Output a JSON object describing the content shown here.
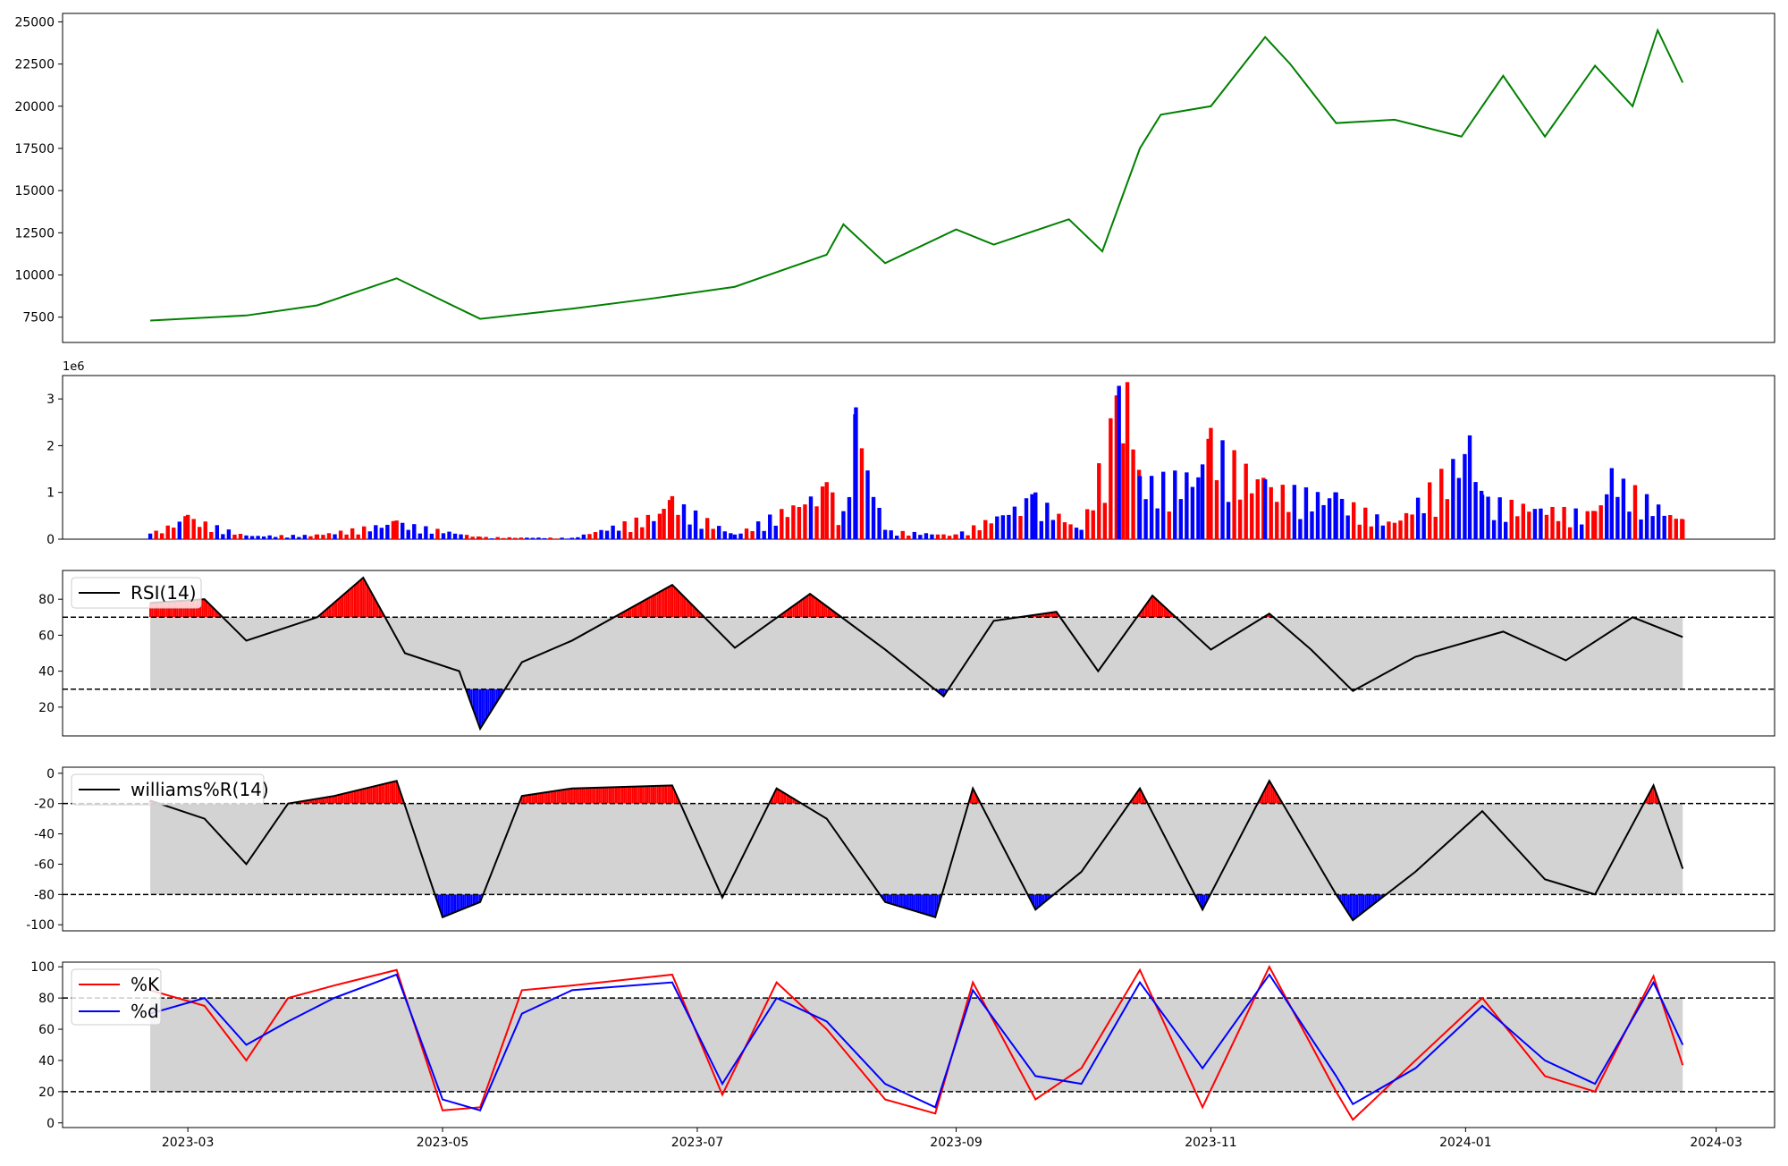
{
  "chart_data": [
    {
      "panel": "price",
      "type": "line",
      "color": "#008000",
      "ylim": [
        6000,
        25500
      ],
      "yticks": [
        7500,
        10000,
        12500,
        15000,
        17500,
        20000,
        22500,
        25000
      ],
      "x": [
        "2023-02-20",
        "2023-03-15",
        "2023-04-01",
        "2023-04-20",
        "2023-05-10",
        "2023-06-01",
        "2023-06-20",
        "2023-07-10",
        "2023-08-01",
        "2023-08-05",
        "2023-08-15",
        "2023-09-01",
        "2023-09-10",
        "2023-09-28",
        "2023-10-06",
        "2023-10-15",
        "2023-10-20",
        "2023-11-01",
        "2023-11-14",
        "2023-11-20",
        "2023-12-01",
        "2023-12-15",
        "2023-12-31",
        "2024-01-10",
        "2024-01-20",
        "2024-02-01",
        "2024-02-10",
        "2024-02-16",
        "2024-02-22"
      ],
      "values": [
        7300,
        7600,
        8200,
        9800,
        7400,
        8000,
        8600,
        9300,
        11200,
        13000,
        10700,
        12700,
        11800,
        13300,
        11400,
        17500,
        19500,
        20000,
        24100,
        22500,
        19000,
        19200,
        18200,
        21800,
        18200,
        22400,
        20000,
        24500,
        21400
      ]
    },
    {
      "panel": "volume",
      "type": "bar",
      "up_color": "#ff0000",
      "down_color": "#0000ff",
      "scale_label": "1e6",
      "ylim": [
        0,
        3.5
      ],
      "yticks": [
        0,
        1,
        2,
        3
      ],
      "x": [
        "2023-02-20",
        "2023-03-01",
        "2023-03-15",
        "2023-04-01",
        "2023-04-20",
        "2023-05-10",
        "2023-06-01",
        "2023-06-23",
        "2023-06-25",
        "2023-07-10",
        "2023-08-01",
        "2023-08-05",
        "2023-08-08",
        "2023-08-15",
        "2023-09-01",
        "2023-09-20",
        "2023-10-01",
        "2023-10-10",
        "2023-10-11",
        "2023-10-12",
        "2023-10-15",
        "2023-10-30",
        "2023-11-01",
        "2023-11-14",
        "2023-12-01",
        "2023-12-15",
        "2024-01-02",
        "2024-01-05",
        "2024-02-01",
        "2024-02-05",
        "2024-02-22"
      ],
      "values": [
        0.12,
        0.52,
        0.08,
        0.1,
        0.4,
        0.05,
        0.03,
        0.65,
        0.92,
        0.1,
        1.22,
        0.6,
        2.82,
        0.2,
        0.1,
        1.0,
        0.2,
        3.28,
        2.05,
        3.36,
        1.35,
        1.6,
        2.38,
        1.28,
        1.0,
        0.35,
        2.22,
        0.95,
        0.6,
        1.52,
        0.42
      ]
    },
    {
      "panel": "rsi",
      "type": "line",
      "legend": "RSI(14)",
      "ylim": [
        4,
        96
      ],
      "yticks": [
        20,
        40,
        60,
        80
      ],
      "band": [
        30,
        70
      ],
      "x": [
        "2023-02-20",
        "2023-03-05",
        "2023-03-15",
        "2023-04-01",
        "2023-04-12",
        "2023-04-22",
        "2023-05-05",
        "2023-05-10",
        "2023-05-20",
        "2023-06-01",
        "2023-06-25",
        "2023-07-10",
        "2023-07-28",
        "2023-08-15",
        "2023-08-29",
        "2023-09-10",
        "2023-09-25",
        "2023-10-05",
        "2023-10-18",
        "2023-11-01",
        "2023-11-15",
        "2023-11-25",
        "2023-12-05",
        "2023-12-20",
        "2024-01-10",
        "2024-01-25",
        "2024-02-10",
        "2024-02-22"
      ],
      "values": [
        78,
        80,
        57,
        70,
        92,
        50,
        40,
        8,
        45,
        57,
        88,
        53,
        83,
        52,
        26,
        68,
        73,
        40,
        82,
        52,
        72,
        52,
        29,
        48,
        62,
        46,
        70,
        59
      ]
    },
    {
      "panel": "williams",
      "type": "line",
      "legend": "williams%R(14)",
      "ylim": [
        -104,
        4
      ],
      "yticks": [
        0,
        -20,
        -40,
        -60,
        -80,
        -100
      ],
      "band": [
        -80,
        -20
      ],
      "x": [
        "2023-02-20",
        "2023-03-05",
        "2023-03-15",
        "2023-03-25",
        "2023-04-05",
        "2023-04-20",
        "2023-05-01",
        "2023-05-10",
        "2023-05-20",
        "2023-06-01",
        "2023-06-25",
        "2023-07-07",
        "2023-07-20",
        "2023-08-01",
        "2023-08-15",
        "2023-08-27",
        "2023-09-05",
        "2023-09-20",
        "2023-10-01",
        "2023-10-15",
        "2023-10-30",
        "2023-11-15",
        "2023-12-01",
        "2023-12-05",
        "2023-12-20",
        "2024-01-05",
        "2024-01-20",
        "2024-02-01",
        "2024-02-15",
        "2024-02-22"
      ],
      "values": [
        -18,
        -30,
        -60,
        -20,
        -15,
        -5,
        -95,
        -85,
        -15,
        -10,
        -8,
        -82,
        -10,
        -30,
        -85,
        -95,
        -10,
        -90,
        -65,
        -10,
        -90,
        -5,
        -80,
        -97,
        -65,
        -25,
        -70,
        -80,
        -8,
        -63
      ]
    },
    {
      "panel": "stochastic",
      "type": "line",
      "ylim": [
        -3,
        103
      ],
      "yticks": [
        0,
        20,
        40,
        60,
        80,
        100
      ],
      "band": [
        20,
        80
      ],
      "x": [
        "2023-02-20",
        "2023-03-05",
        "2023-03-15",
        "2023-03-25",
        "2023-04-05",
        "2023-04-20",
        "2023-05-01",
        "2023-05-10",
        "2023-05-20",
        "2023-06-01",
        "2023-06-25",
        "2023-07-07",
        "2023-07-20",
        "2023-08-01",
        "2023-08-15",
        "2023-08-27",
        "2023-09-05",
        "2023-09-20",
        "2023-10-01",
        "2023-10-15",
        "2023-10-30",
        "2023-11-15",
        "2023-12-01",
        "2023-12-05",
        "2023-12-20",
        "2024-01-05",
        "2024-01-20",
        "2024-02-01",
        "2024-02-15",
        "2024-02-22"
      ],
      "series": [
        {
          "name": "%K",
          "color": "#ff0000",
          "values": [
            85,
            75,
            40,
            80,
            88,
            98,
            8,
            10,
            85,
            88,
            95,
            18,
            90,
            60,
            15,
            6,
            90,
            15,
            35,
            98,
            10,
            100,
            20,
            2,
            40,
            80,
            30,
            20,
            94,
            37
          ]
        },
        {
          "name": "%d",
          "color": "#0000ff",
          "values": [
            70,
            80,
            50,
            65,
            80,
            95,
            15,
            8,
            70,
            85,
            90,
            25,
            80,
            65,
            25,
            10,
            85,
            30,
            25,
            90,
            35,
            95,
            30,
            12,
            35,
            75,
            40,
            25,
            90,
            50
          ]
        }
      ]
    }
  ],
  "x_axis": {
    "ticks": [
      {
        "date": "2023-03-01",
        "label": "2023-03"
      },
      {
        "date": "2023-05-01",
        "label": "2023-05"
      },
      {
        "date": "2023-07-01",
        "label": "2023-07"
      },
      {
        "date": "2023-09-01",
        "label": "2023-09"
      },
      {
        "date": "2023-11-01",
        "label": "2023-11"
      },
      {
        "date": "2024-01-01",
        "label": "2024-01"
      },
      {
        "date": "2024-03-01",
        "label": "2024-03"
      }
    ],
    "domain": [
      "2023-01-30",
      "2024-03-15"
    ]
  },
  "style": {
    "band_fill": "#d3d3d3",
    "over_fill": "#ff0000",
    "under_fill": "#0000ff",
    "line": "#000000"
  }
}
